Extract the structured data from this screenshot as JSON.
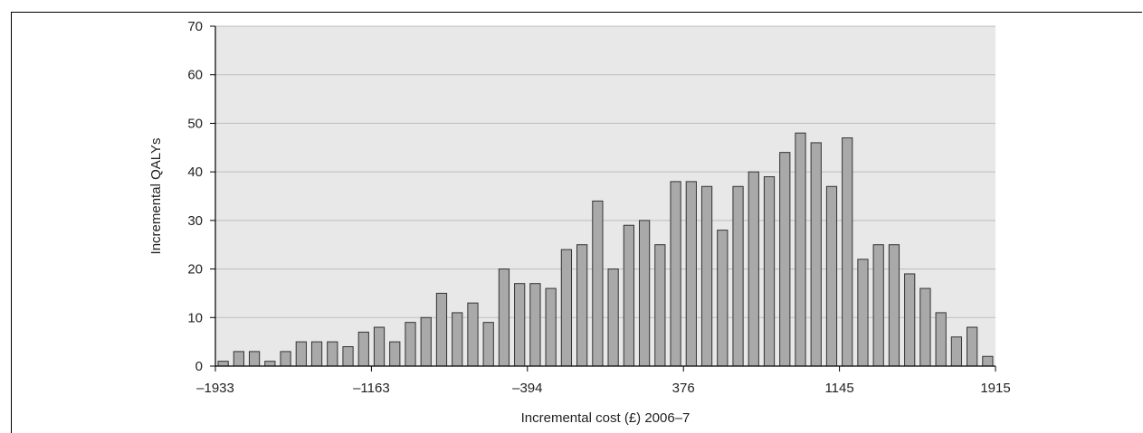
{
  "chart_data": {
    "type": "bar",
    "xlabel": "Incremental cost (£) 2006–7",
    "ylabel": "Incremental QALYs",
    "ylim": [
      0,
      70
    ],
    "y_ticks": [
      "0",
      "10",
      "20",
      "30",
      "40",
      "50",
      "60",
      "70"
    ],
    "x_ticks": [
      "–1933",
      "–1163",
      "–394",
      "376",
      "1145",
      "1915"
    ],
    "xlim": [
      -1933,
      1915
    ],
    "grid": "horizontal",
    "colors": {
      "bar_fill": "#a9a9a9",
      "bar_stroke": "#333333",
      "plot_bg": "#e8e8e8",
      "grid": "#bdbdbd"
    },
    "values": [
      1,
      3,
      3,
      1,
      3,
      5,
      5,
      5,
      4,
      7,
      8,
      5,
      9,
      10,
      15,
      11,
      13,
      9,
      20,
      17,
      17,
      16,
      24,
      25,
      34,
      20,
      29,
      30,
      25,
      38,
      38,
      37,
      28,
      37,
      40,
      39,
      44,
      48,
      46,
      37,
      47,
      22,
      25,
      25,
      19,
      16,
      11,
      6,
      8,
      2
    ]
  }
}
